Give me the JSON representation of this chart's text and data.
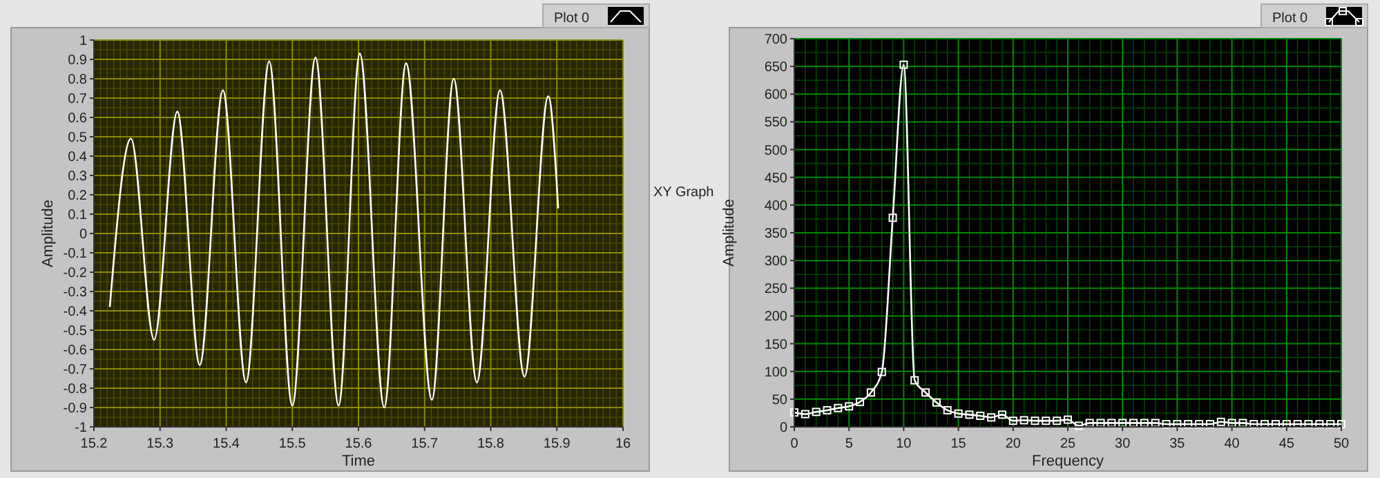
{
  "chart_data": [
    {
      "type": "line",
      "xlabel": "Time",
      "ylabel": "Amplitude",
      "xlim": [
        15.2,
        16
      ],
      "ylim": [
        -1,
        1
      ],
      "xticks": [
        15.2,
        {
          "value": 15.21,
          "label": null
        },
        {
          "value": 15.22,
          "label": null
        },
        {
          "value": 15.23,
          "label": null
        },
        {
          "value": 15.24,
          "label": null
        },
        {
          "value": 15.25,
          "label": null
        },
        {
          "value": 15.26,
          "label": null
        },
        {
          "value": 15.27,
          "label": null
        },
        {
          "value": 15.28,
          "label": null
        },
        {
          "value": 15.29,
          "label": null
        },
        15.3,
        {
          "value": 15.31,
          "label": null
        },
        {
          "value": 15.32,
          "label": null
        },
        {
          "value": 15.33,
          "label": null
        },
        {
          "value": 15.34,
          "label": null
        },
        {
          "value": 15.35,
          "label": null
        },
        {
          "value": 15.36,
          "label": null
        },
        {
          "value": 15.37,
          "label": null
        },
        {
          "value": 15.38,
          "label": null
        },
        {
          "value": 15.39,
          "label": null
        },
        15.4,
        {
          "value": 15.41,
          "label": null
        },
        {
          "value": 15.42,
          "label": null
        },
        {
          "value": 15.43,
          "label": null
        },
        {
          "value": 15.44,
          "label": null
        },
        {
          "value": 15.45,
          "label": null
        },
        {
          "value": 15.46,
          "label": null
        },
        {
          "value": 15.47,
          "label": null
        },
        {
          "value": 15.48,
          "label": null
        },
        {
          "value": 15.49,
          "label": null
        },
        15.5,
        {
          "value": 15.51,
          "label": null
        },
        {
          "value": 15.52,
          "label": null
        },
        {
          "value": 15.53,
          "label": null
        },
        {
          "value": 15.54,
          "label": null
        },
        {
          "value": 15.55,
          "label": null
        },
        {
          "value": 15.56,
          "label": null
        },
        {
          "value": 15.57,
          "label": null
        },
        {
          "value": 15.58,
          "label": null
        },
        {
          "value": 15.59,
          "label": null
        },
        15.6,
        {
          "value": 15.61,
          "label": null
        },
        {
          "value": 15.62,
          "label": null
        },
        {
          "value": 15.63,
          "label": null
        },
        {
          "value": 15.64,
          "label": null
        },
        {
          "value": 15.65,
          "label": null
        },
        {
          "value": 15.66,
          "label": null
        },
        {
          "value": 15.67,
          "label": null
        },
        {
          "value": 15.68,
          "label": null
        },
        {
          "value": 15.69,
          "label": null
        },
        15.7,
        {
          "value": 15.71,
          "label": null
        },
        {
          "value": 15.72,
          "label": null
        },
        {
          "value": 15.73,
          "label": null
        },
        {
          "value": 15.74,
          "label": null
        },
        {
          "value": 15.75,
          "label": null
        },
        {
          "value": 15.76,
          "label": null
        },
        {
          "value": 15.77,
          "label": null
        },
        {
          "value": 15.78,
          "label": null
        },
        {
          "value": 15.79,
          "label": null
        },
        15.8,
        {
          "value": 15.81,
          "label": null
        },
        {
          "value": 15.82,
          "label": null
        },
        {
          "value": 15.83,
          "label": null
        },
        {
          "value": 15.84,
          "label": null
        },
        {
          "value": 15.85,
          "label": null
        },
        {
          "value": 15.86,
          "label": null
        },
        {
          "value": 15.87,
          "label": null
        },
        {
          "value": 15.88,
          "label": null
        },
        {
          "value": 15.89,
          "label": null
        },
        15.9,
        {
          "value": 15.91,
          "label": null
        },
        {
          "value": 15.92,
          "label": null
        },
        {
          "value": 15.93,
          "label": null
        },
        {
          "value": 15.94,
          "label": null
        },
        {
          "value": 15.95,
          "label": null
        },
        {
          "value": 15.96,
          "label": null
        },
        {
          "value": 15.97,
          "label": null
        },
        {
          "value": 15.98,
          "label": null
        },
        {
          "value": 15.99,
          "label": null
        },
        16
      ],
      "yticks": [
        -1,
        {
          "value": -0.95,
          "label": null
        },
        -0.9,
        {
          "value": -0.85,
          "label": null
        },
        -0.8,
        {
          "value": -0.75,
          "label": null
        },
        -0.7,
        {
          "value": -0.65,
          "label": null
        },
        -0.6,
        {
          "value": -0.55,
          "label": null
        },
        -0.5,
        {
          "value": -0.45,
          "label": null
        },
        -0.4,
        {
          "value": -0.35,
          "label": null
        },
        -0.3,
        {
          "value": -0.25,
          "label": null
        },
        -0.2,
        {
          "value": -0.15,
          "label": null
        },
        -0.1,
        {
          "value": -0.05,
          "label": null
        },
        0,
        {
          "value": 0.05,
          "label": null
        },
        0.1,
        {
          "value": 0.15,
          "label": null
        },
        0.2,
        {
          "value": 0.25,
          "label": null
        },
        0.3,
        {
          "value": 0.35,
          "label": null
        },
        0.4,
        {
          "value": 0.45,
          "label": null
        },
        0.5,
        {
          "value": 0.55,
          "label": null
        },
        0.6,
        {
          "value": 0.65,
          "label": null
        },
        0.7,
        {
          "value": 0.75,
          "label": null
        },
        0.8,
        {
          "value": 0.85,
          "label": null
        },
        0.9,
        {
          "value": 0.95,
          "label": null
        },
        1
      ],
      "grid": true,
      "legend": "top right",
      "marker": "none",
      "annotations": [
        "XY Graph"
      ],
      "series": [
        {
          "name": "Plot 0",
          "color": "#ffffff",
          "x": [
            15.224,
            15.256,
            15.291,
            15.326,
            15.36,
            15.395,
            15.43,
            15.465,
            15.5,
            15.535,
            15.57,
            15.602,
            15.639,
            15.672,
            15.711,
            15.744,
            15.779,
            15.814,
            15.851,
            15.887,
            15.902
          ],
          "values": [
            -0.38,
            0.49,
            -0.55,
            0.63,
            -0.68,
            0.74,
            -0.77,
            0.89,
            -0.89,
            0.91,
            -0.89,
            0.93,
            -0.9,
            0.88,
            -0.86,
            0.8,
            -0.77,
            0.74,
            -0.74,
            0.71,
            0.13
          ]
        }
      ]
    },
    {
      "type": "line",
      "xlabel": "Frequency",
      "ylabel": "Amplitude",
      "xlim": [
        0,
        50
      ],
      "ylim": [
        0,
        700
      ],
      "xticks": [
        0,
        {
          "value": 1,
          "label": null
        },
        {
          "value": 2,
          "label": null
        },
        {
          "value": 3,
          "label": null
        },
        {
          "value": 4,
          "label": null
        },
        5,
        {
          "value": 6,
          "label": null
        },
        {
          "value": 7,
          "label": null
        },
        {
          "value": 8,
          "label": null
        },
        {
          "value": 9,
          "label": null
        },
        10,
        {
          "value": 11,
          "label": null
        },
        {
          "value": 12,
          "label": null
        },
        {
          "value": 13,
          "label": null
        },
        {
          "value": 14,
          "label": null
        },
        15,
        {
          "value": 16,
          "label": null
        },
        {
          "value": 17,
          "label": null
        },
        {
          "value": 18,
          "label": null
        },
        {
          "value": 19,
          "label": null
        },
        20,
        {
          "value": 21,
          "label": null
        },
        {
          "value": 22,
          "label": null
        },
        {
          "value": 23,
          "label": null
        },
        {
          "value": 24,
          "label": null
        },
        25,
        {
          "value": 26,
          "label": null
        },
        {
          "value": 27,
          "label": null
        },
        {
          "value": 28,
          "label": null
        },
        {
          "value": 29,
          "label": null
        },
        30,
        {
          "value": 31,
          "label": null
        },
        {
          "value": 32,
          "label": null
        },
        {
          "value": 33,
          "label": null
        },
        {
          "value": 34,
          "label": null
        },
        35,
        {
          "value": 36,
          "label": null
        },
        {
          "value": 37,
          "label": null
        },
        {
          "value": 38,
          "label": null
        },
        {
          "value": 39,
          "label": null
        },
        40,
        {
          "value": 41,
          "label": null
        },
        {
          "value": 42,
          "label": null
        },
        {
          "value": 43,
          "label": null
        },
        {
          "value": 44,
          "label": null
        },
        45,
        {
          "value": 46,
          "label": null
        },
        {
          "value": 47,
          "label": null
        },
        {
          "value": 48,
          "label": null
        },
        {
          "value": 49,
          "label": null
        },
        50
      ],
      "yticks": [
        0,
        {
          "value": 25,
          "label": null
        },
        50,
        {
          "value": 75,
          "label": null
        },
        100,
        {
          "value": 125,
          "label": null
        },
        150,
        {
          "value": 175,
          "label": null
        },
        200,
        {
          "value": 225,
          "label": null
        },
        250,
        {
          "value": 275,
          "label": null
        },
        300,
        {
          "value": 325,
          "label": null
        },
        350,
        {
          "value": 375,
          "label": null
        },
        400,
        {
          "value": 425,
          "label": null
        },
        450,
        {
          "value": 475,
          "label": null
        },
        500,
        {
          "value": 525,
          "label": null
        },
        550,
        {
          "value": 575,
          "label": null
        },
        600,
        {
          "value": 625,
          "label": null
        },
        650,
        {
          "value": 675,
          "label": null
        },
        700
      ],
      "grid": true,
      "legend": "top right",
      "marker": "square",
      "series": [
        {
          "name": "Plot 0",
          "color": "#ffffff",
          "x": [
            0,
            1,
            2,
            3,
            4,
            5,
            6,
            7,
            8,
            9,
            10,
            11,
            12,
            13,
            14,
            15,
            16,
            17,
            18,
            19,
            20,
            21,
            22,
            23,
            24,
            25,
            26,
            27,
            28,
            29,
            30,
            31,
            32,
            33,
            34,
            35,
            36,
            37,
            38,
            39,
            40,
            41,
            42,
            43,
            44,
            45,
            46,
            47,
            48,
            49,
            50
          ],
          "values": [
            26,
            23,
            27,
            30,
            34,
            37,
            45,
            62,
            99,
            377,
            653,
            84,
            62,
            44,
            30,
            24,
            22,
            20,
            17,
            22,
            11,
            12,
            11,
            11,
            11,
            13,
            2,
            7,
            7,
            7,
            7,
            7,
            7,
            7,
            5,
            5,
            5,
            5,
            5,
            9,
            7,
            7,
            5,
            5,
            5,
            5,
            5,
            5,
            5,
            5,
            5
          ]
        }
      ]
    }
  ]
}
